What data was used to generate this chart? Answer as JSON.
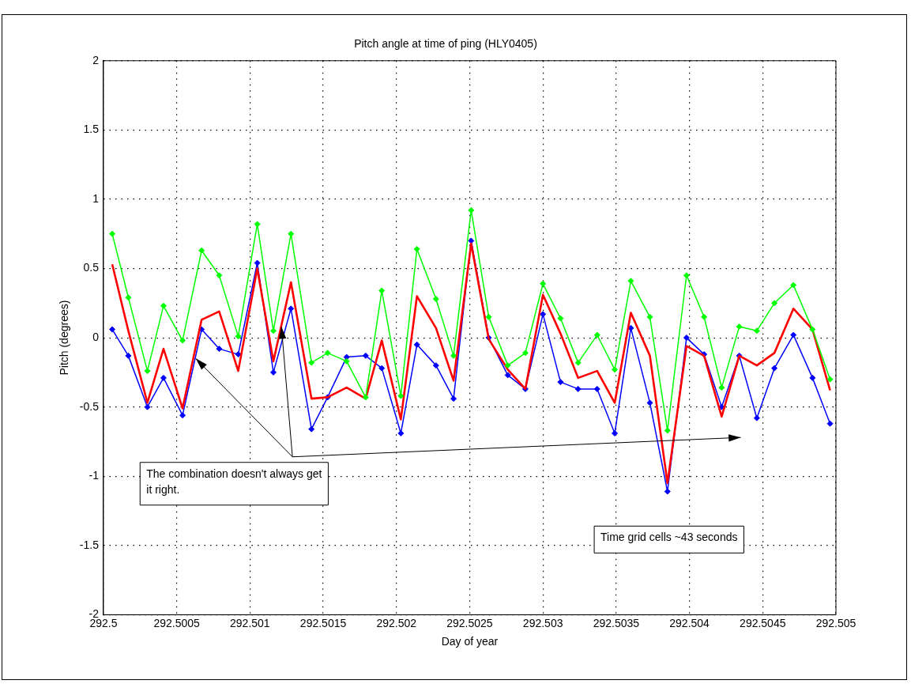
{
  "chart_data": {
    "type": "line",
    "title": "Pitch angle at time of ping (HLY0405)",
    "xlabel": "Day of year",
    "ylabel": "Pitch (degrees)",
    "x": [
      292.50006,
      292.50017,
      292.5003,
      292.50041,
      292.50054,
      292.50067,
      292.50079,
      292.50092,
      292.50105,
      292.50116,
      292.50128,
      292.50142,
      292.50153,
      292.50166,
      292.50179,
      292.5019,
      292.50203,
      292.50214,
      292.50227,
      292.50239,
      292.50251,
      292.50263,
      292.50276,
      292.50288,
      292.503,
      292.50312,
      292.50324,
      292.50337,
      292.50349,
      292.5036,
      292.50373,
      292.50385,
      292.50398,
      292.5041,
      292.50422,
      292.50434,
      292.50446,
      292.50458,
      292.50471,
      292.50484,
      292.50496
    ],
    "series": [
      {
        "color": "#00ff00",
        "marker": "diamond",
        "values": [
          0.75,
          0.29,
          -0.24,
          0.23,
          -0.02,
          0.63,
          0.45,
          0.01,
          0.82,
          0.05,
          0.75,
          -0.18,
          -0.11,
          -0.17,
          -0.43,
          0.34,
          -0.42,
          0.64,
          0.28,
          -0.13,
          0.92,
          0.15,
          -0.2,
          -0.11,
          0.39,
          0.14,
          -0.18,
          0.02,
          -0.23,
          0.41,
          0.15,
          -0.67,
          0.45,
          0.15,
          -0.36,
          0.08,
          0.05,
          0.25,
          0.38,
          0.06,
          -0.3
        ]
      },
      {
        "color": "#ff0000",
        "marker": "none",
        "values": [
          0.53,
          0.05,
          -0.47,
          -0.08,
          -0.51,
          0.13,
          0.19,
          -0.24,
          0.5,
          -0.17,
          0.4,
          -0.44,
          -0.43,
          -0.36,
          -0.44,
          -0.02,
          -0.59,
          0.3,
          0.07,
          -0.31,
          0.68,
          -0.01,
          -0.23,
          -0.37,
          0.31,
          0.03,
          -0.29,
          -0.24,
          -0.47,
          0.18,
          -0.13,
          -1.05,
          -0.06,
          -0.13,
          -0.57,
          -0.13,
          -0.2,
          -0.11,
          0.21,
          0.06,
          -0.38
        ]
      },
      {
        "color": "#0000ff",
        "marker": "diamond",
        "values": [
          0.06,
          -0.13,
          -0.5,
          -0.29,
          -0.56,
          0.06,
          -0.08,
          -0.12,
          0.54,
          -0.25,
          0.21,
          -0.66,
          -0.43,
          -0.14,
          -0.13,
          -0.22,
          -0.69,
          -0.05,
          -0.2,
          -0.44,
          0.7,
          0,
          -0.27,
          -0.37,
          0.17,
          -0.32,
          -0.37,
          -0.37,
          -0.69,
          0.07,
          -0.47,
          -1.11,
          0,
          -0.12,
          -0.5,
          -0.13,
          -0.58,
          -0.22,
          0.02,
          -0.29,
          -0.62
        ]
      }
    ],
    "xlim": [
      292.5,
      292.505
    ],
    "xticks": [
      292.5,
      292.5005,
      292.501,
      292.5015,
      292.502,
      292.5025,
      292.503,
      292.5035,
      292.504,
      292.5045,
      292.505
    ],
    "ylim": [
      -2,
      2
    ],
    "yticks": [
      -2,
      -1.5,
      -1,
      -0.5,
      0,
      0.5,
      1,
      1.5,
      2
    ],
    "grid": true,
    "legend": false,
    "line_style": "solid",
    "annotations": [
      {
        "text": "The combination doesn't always get it right.",
        "x": 292.50063,
        "y": -0.15
      },
      "Time grid cells ~43 seconds"
    ]
  }
}
